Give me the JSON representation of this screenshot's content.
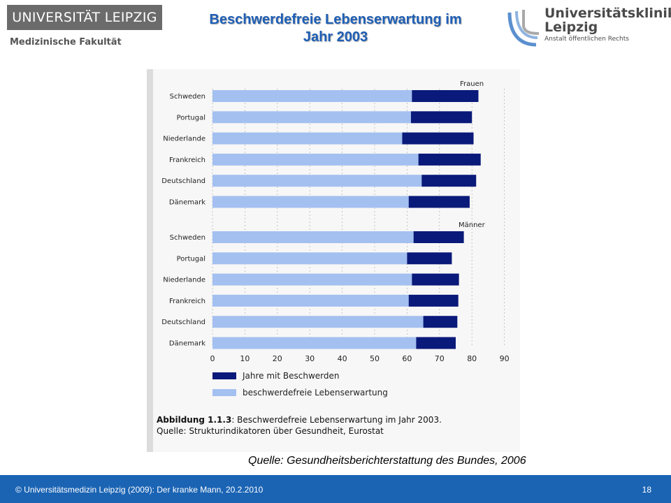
{
  "header": {
    "university_logo": "UNIVERSITÄT LEIPZIG",
    "faculty": "Medizinische Fakultät",
    "title_line1": "Beschwerdefreie Lebenserwartung im",
    "title_line2": "Jahr 2003",
    "clinic_line1": "Universitätsklinikum",
    "clinic_line2": "Leipzig",
    "clinic_line3": "Anstalt öffentlichen Rechts"
  },
  "colors": {
    "title": "#1f5fb5",
    "healthy_bar": "#a3c0f0",
    "complaint_bar": "#0a1a7a",
    "footer": "#1b64b4"
  },
  "chart_data": {
    "type": "bar",
    "orientation": "horizontal",
    "stacked": true,
    "panels": [
      {
        "label": "Frauen",
        "categories": [
          "Schweden",
          "Portugal",
          "Niederlande",
          "Frankreich",
          "Deutschland",
          "Dänemark"
        ],
        "series": [
          {
            "name": "beschwerdefreie Lebenserwartung",
            "values": [
              61.5,
              61.2,
              58.5,
              63.5,
              64.5,
              60.5
            ]
          },
          {
            "name": "Jahre mit Beschwerden",
            "values": [
              20.5,
              18.8,
              22.0,
              19.2,
              16.8,
              18.8
            ]
          }
        ]
      },
      {
        "label": "Männer",
        "categories": [
          "Schweden",
          "Portugal",
          "Niederlande",
          "Frankreich",
          "Deutschland",
          "Dänemark"
        ],
        "series": [
          {
            "name": "beschwerdefreie Lebenserwartung",
            "values": [
              62.0,
              60.0,
              61.5,
              60.5,
              65.0,
              62.8
            ]
          },
          {
            "name": "Jahre mit Beschwerden",
            "values": [
              15.5,
              13.8,
              14.5,
              15.3,
              10.5,
              12.2
            ]
          }
        ]
      }
    ],
    "x_ticks": [
      "0",
      "10",
      "20",
      "30",
      "40",
      "50",
      "60",
      "70",
      "80",
      "90"
    ],
    "xlim": [
      0,
      90
    ],
    "legend": [
      "Jahre mit Beschwerden",
      "beschwerdefreie Lebenserwartung"
    ],
    "caption_bold": "Abbildung 1.1.3",
    "caption_rest": ": Beschwerdefreie Lebenserwartung im Jahr 2003.",
    "caption_line2": "Quelle: Strukturindikatoren über Gesundheit, Eurostat"
  },
  "source": "Quelle: Gesundheitsberichterstattung des Bundes, 2006",
  "footer": {
    "text": "© Universitätsmedizin Leipzig (2009): Der kranke Mann, 20.2.2010",
    "page": "18"
  }
}
